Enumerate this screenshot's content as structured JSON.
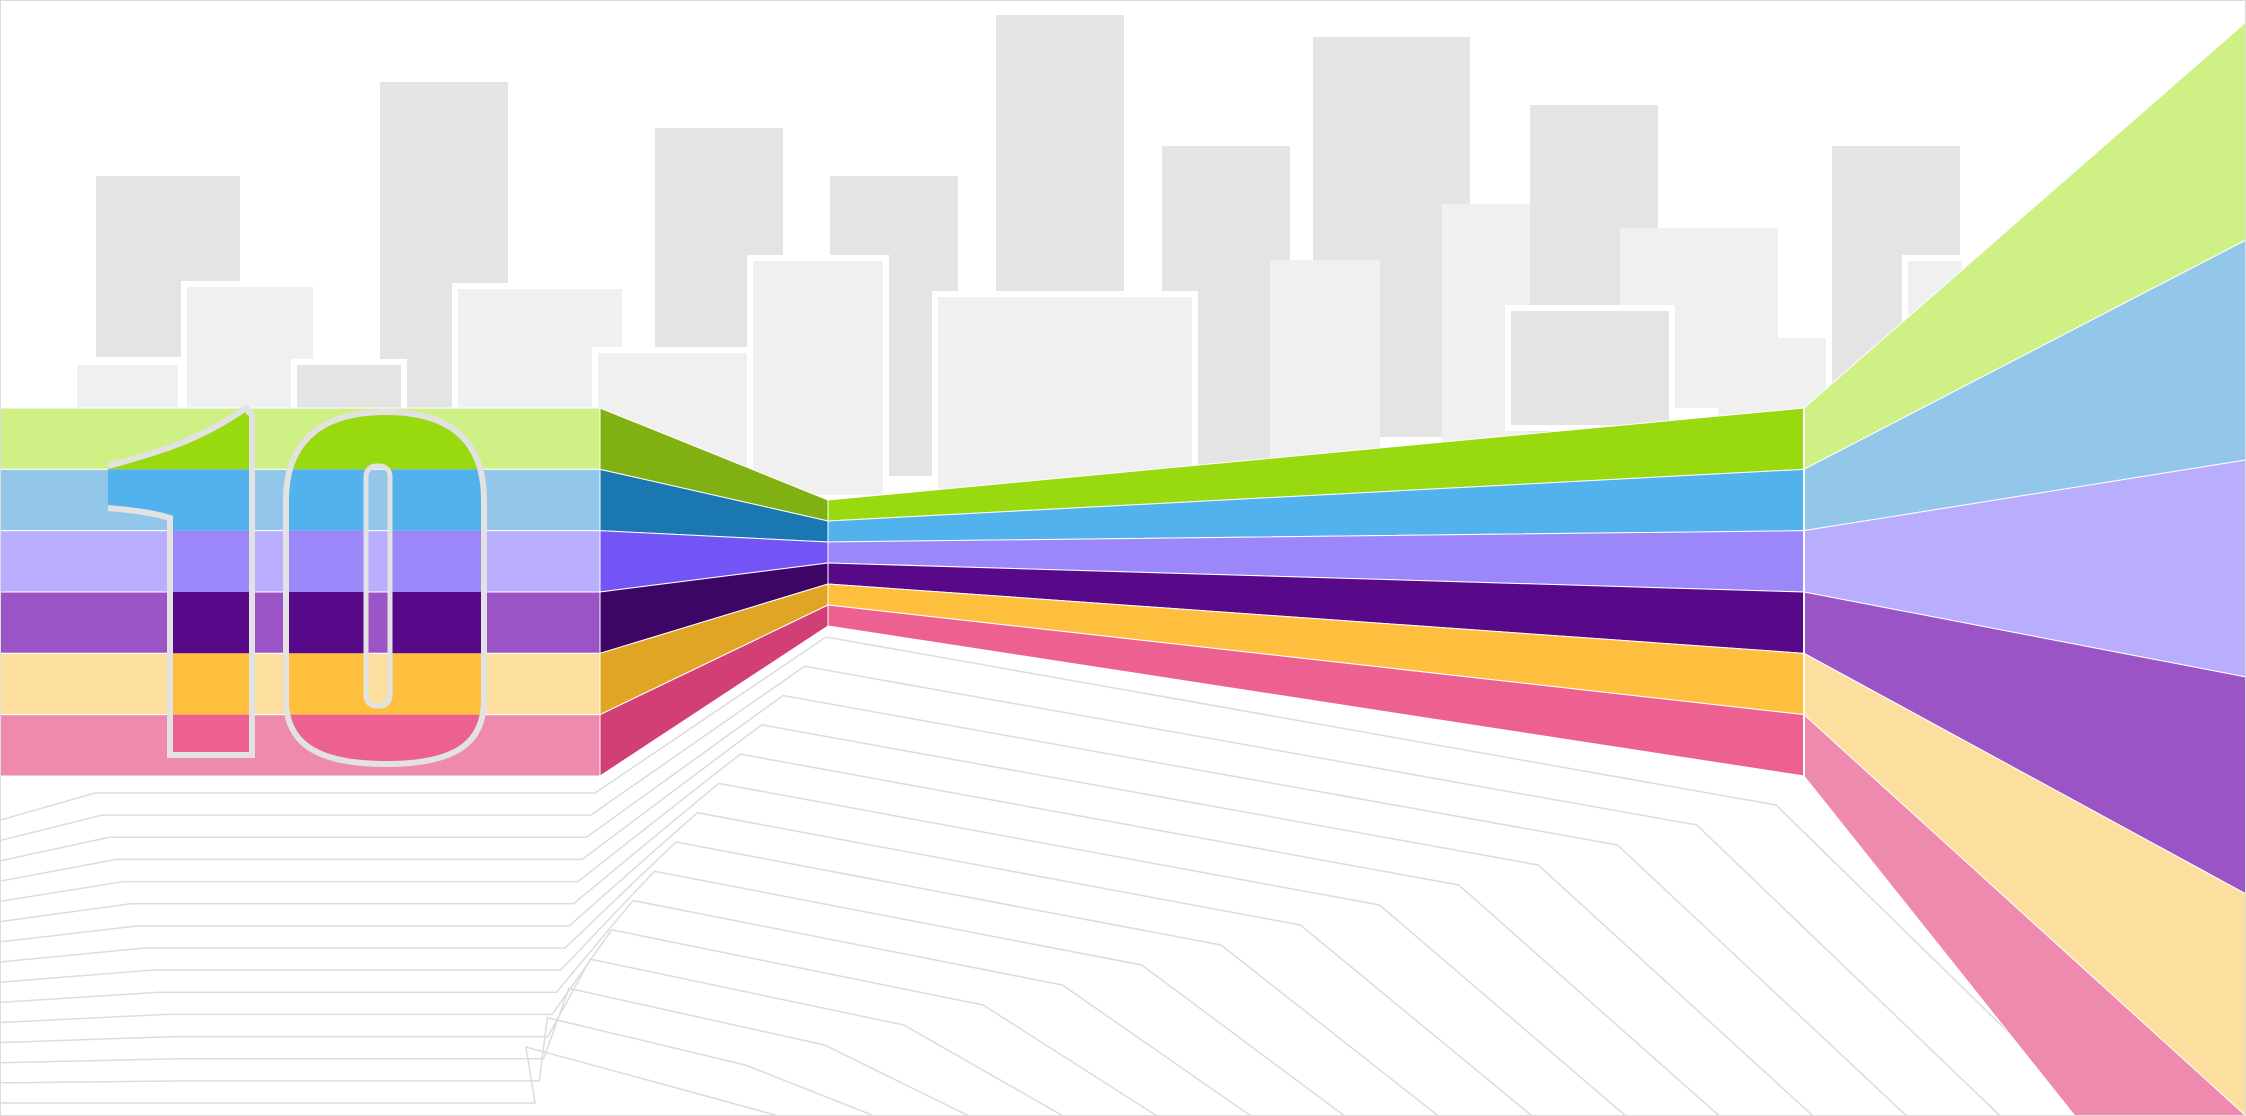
{
  "artwork": {
    "subject": "ten",
    "glyph": "10",
    "background": "#ffffff",
    "frame_color": "#dcdcdc",
    "skyline": {
      "back_color": "#e4e4e4",
      "front_color": "#f0f0f0",
      "outline_color": "#ffffff"
    },
    "floor_line_color": "#dcdcdc",
    "glyph_outline_color": "#e2e2e2"
  },
  "stripes": [
    {
      "name": "green",
      "light": "#cff084",
      "mid": "#99d90f",
      "dark": "#80b011"
    },
    {
      "name": "blue",
      "light": "#93c7e9",
      "mid": "#52b2ee",
      "dark": "#1a77b2"
    },
    {
      "name": "violet",
      "light": "#b9aefd",
      "mid": "#9b87fa",
      "dark": "#7355f5"
    },
    {
      "name": "purple",
      "light": "#9a54c6",
      "mid": "#58098a",
      "dark": "#3d0566"
    },
    {
      "name": "amber",
      "light": "#fcdf9e",
      "mid": "#ffbf3e",
      "dark": "#e0a524"
    },
    {
      "name": "pink",
      "light": "#ef8aaf",
      "mid": "#ec6191",
      "dark": "#d23f77"
    }
  ]
}
